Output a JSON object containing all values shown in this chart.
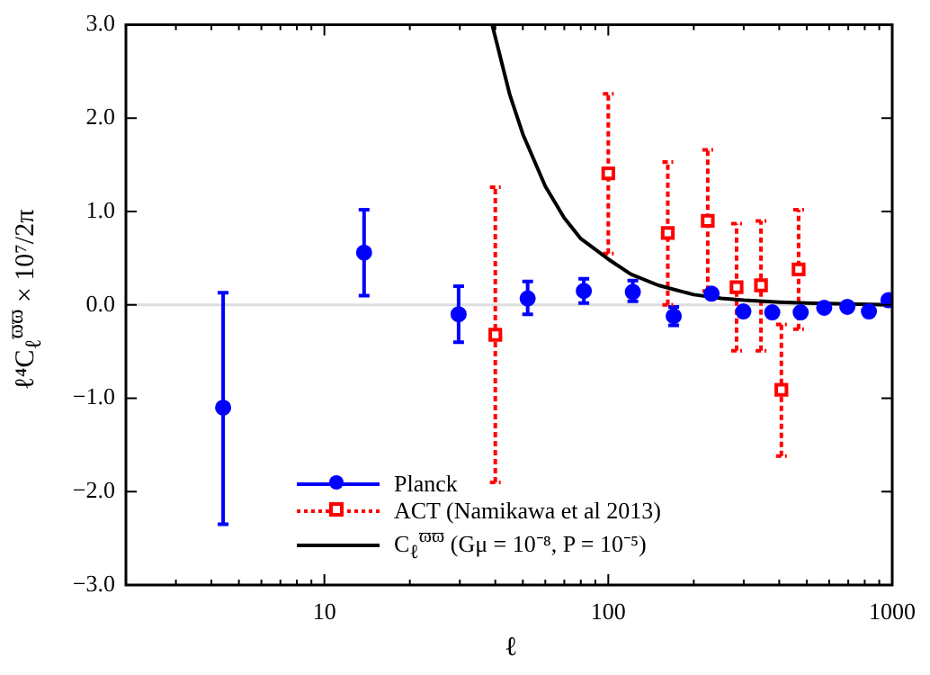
{
  "chart_data": {
    "type": "scatter",
    "xlabel": "ℓ",
    "ylabel": "ℓ⁴C$_{ℓ}$$^{ϖϖ}$ × 10⁷/2π",
    "log": "x",
    "legend": "bottom left",
    "xlim": [
      2,
      1000
    ],
    "ylim": [
      -3,
      3
    ],
    "xticks": [
      {
        "value": 2,
        "label": null
      },
      {
        "value": 3,
        "label": null
      },
      {
        "value": 4,
        "label": null
      },
      {
        "value": 5,
        "label": null
      },
      {
        "value": 6,
        "label": null
      },
      {
        "value": 7,
        "label": null
      },
      {
        "value": 8,
        "label": null
      },
      {
        "value": 9,
        "label": null
      },
      10,
      {
        "value": 20,
        "label": null
      },
      {
        "value": 30,
        "label": null
      },
      {
        "value": 40,
        "label": null
      },
      {
        "value": 50,
        "label": null
      },
      {
        "value": 60,
        "label": null
      },
      {
        "value": 70,
        "label": null
      },
      {
        "value": 80,
        "label": null
      },
      {
        "value": 90,
        "label": null
      },
      100,
      {
        "value": 200,
        "label": null
      },
      {
        "value": 300,
        "label": null
      },
      {
        "value": 400,
        "label": null
      },
      {
        "value": 500,
        "label": null
      },
      {
        "value": 600,
        "label": null
      },
      {
        "value": 700,
        "label": null
      },
      {
        "value": 800,
        "label": null
      },
      {
        "value": 900,
        "label": null
      },
      1000
    ],
    "yticks": [
      {
        "value": -3,
        "label": "−3.0"
      },
      {
        "value": -2,
        "label": "−2.0"
      },
      {
        "value": -1,
        "label": "−1.0"
      },
      {
        "value": 0,
        "label": "0.0"
      },
      {
        "value": 1,
        "label": "1.0"
      },
      {
        "value": 2,
        "label": "2.0"
      },
      {
        "value": 3,
        "label": "3.0"
      }
    ],
    "ref_lines": [
      {
        "axis": "y",
        "value": 0,
        "color": "#dddddd"
      }
    ],
    "series": [
      {
        "name": "Planck",
        "marker": "circle",
        "line_style": "solid",
        "color": "#0000ff",
        "x": [
          4.4,
          13.8,
          29.7,
          52,
          82,
          122,
          170,
          231,
          299,
          378,
          476,
          576,
          695,
          828,
          970
        ],
        "values": [
          -1.1,
          0.56,
          -0.1,
          0.07,
          0.15,
          0.14,
          -0.12,
          0.12,
          -0.07,
          -0.08,
          -0.08,
          -0.03,
          -0.02,
          -0.07,
          0.05
        ],
        "errors": [
          [
            -2.35,
            0.13
          ],
          [
            0.1,
            1.02
          ],
          [
            -0.4,
            0.2
          ],
          [
            -0.1,
            0.25
          ],
          [
            0.02,
            0.28
          ],
          [
            0.04,
            0.26
          ],
          [
            -0.22,
            -0.02
          ],
          null,
          null,
          null,
          null,
          null,
          null,
          null,
          null
        ]
      },
      {
        "name": "ACT (Namikawa et al 2013)",
        "marker": "square",
        "line_style": "dotted",
        "color": "#ff0000",
        "x": [
          40,
          100,
          162,
          224,
          283,
          345,
          407,
          468
        ],
        "values": [
          -0.32,
          1.41,
          0.77,
          0.9,
          0.19,
          0.21,
          -0.91,
          0.38
        ],
        "errors": [
          [
            -1.9,
            1.26
          ],
          [
            0.55,
            2.26
          ],
          [
            0,
            1.53
          ],
          [
            0.15,
            1.66
          ],
          [
            -0.49,
            0.87
          ],
          [
            -0.49,
            0.9
          ],
          [
            -1.62,
            -0.21
          ],
          [
            -0.26,
            1.02
          ]
        ]
      },
      {
        "name": "C$_{ℓ}$$^{ϖϖ}$ (Gμ = 10⁻⁸, P = 10⁻⁵)",
        "type": "line",
        "marker": "none",
        "line_style": "solid",
        "color": "#000000",
        "x": [
          39,
          45,
          50,
          60,
          70,
          80,
          100,
          120,
          150,
          200,
          250,
          300,
          400,
          500,
          700,
          1000
        ],
        "values": [
          3.0,
          2.25,
          1.83,
          1.27,
          0.93,
          0.71,
          0.49,
          0.33,
          0.21,
          0.11,
          0.07,
          0.05,
          0.03,
          0.02,
          0.01,
          0.0
        ]
      }
    ]
  }
}
